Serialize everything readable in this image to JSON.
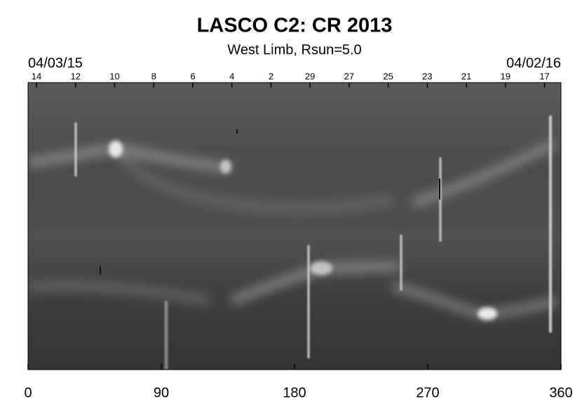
{
  "chart_data": {
    "type": "image",
    "title": "LASCO C2: CR 2013",
    "subtitle": "West Limb, Rsun=5.0",
    "start_label": "04/03/15",
    "end_label": "04/02/16",
    "xlim": [
      0,
      360
    ],
    "xticks": [
      0,
      90,
      180,
      270,
      360
    ],
    "x2ticks": [
      {
        "value": 5.7,
        "label": "14"
      },
      {
        "value": 32.1,
        "label": "12"
      },
      {
        "value": 58.5,
        "label": "10"
      },
      {
        "value": 84.9,
        "label": "8"
      },
      {
        "value": 111.3,
        "label": "6"
      },
      {
        "value": 137.7,
        "label": "4"
      },
      {
        "value": 164.1,
        "label": "2"
      },
      {
        "value": 190.5,
        "label": "29"
      },
      {
        "value": 216.9,
        "label": "27"
      },
      {
        "value": 243.3,
        "label": "25"
      },
      {
        "value": 269.7,
        "label": "23"
      },
      {
        "value": 296.1,
        "label": "21"
      },
      {
        "value": 322.5,
        "label": "19"
      },
      {
        "value": 348.9,
        "label": "17"
      }
    ]
  }
}
